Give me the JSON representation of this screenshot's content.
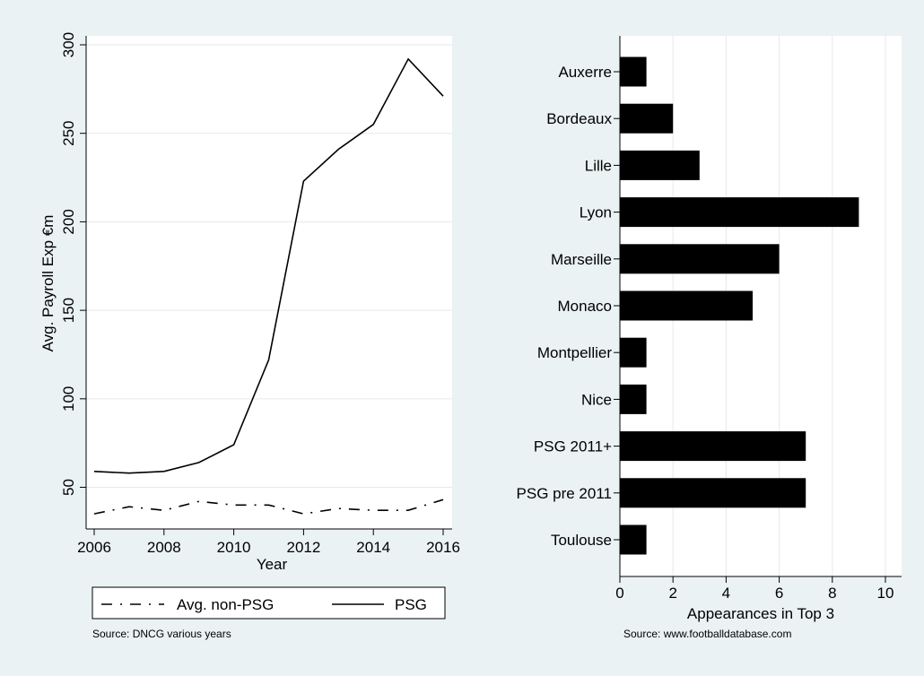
{
  "chart_data": [
    {
      "type": "line",
      "xlabel": "Year",
      "ylabel": "Avg. Payroll Exp €m",
      "xlim": [
        2006,
        2016
      ],
      "ylim": [
        30,
        300
      ],
      "x_ticks": [
        2006,
        2008,
        2010,
        2012,
        2014,
        2016
      ],
      "y_ticks": [
        50,
        100,
        150,
        200,
        250,
        300
      ],
      "x": [
        2006,
        2007,
        2008,
        2009,
        2010,
        2011,
        2012,
        2013,
        2014,
        2015,
        2016
      ],
      "series": [
        {
          "name": "Avg. non-PSG",
          "style": "dashed",
          "values": [
            35,
            39,
            37,
            42,
            40,
            40,
            35,
            38,
            37,
            37,
            43
          ]
        },
        {
          "name": "PSG",
          "style": "solid",
          "values": [
            59,
            58,
            59,
            64,
            74,
            122,
            223,
            241,
            255,
            292,
            271
          ]
        }
      ],
      "grid": true,
      "legend": {
        "position": "bottom",
        "entries": [
          "Avg. non-PSG",
          "PSG"
        ]
      },
      "note": "Source: DNCG various years"
    },
    {
      "type": "bar",
      "orientation": "horizontal",
      "categories": [
        "Auxerre",
        "Bordeaux",
        "Lille",
        "Lyon",
        "Marseille",
        "Monaco",
        "Montpellier",
        "Nice",
        "PSG 2011+",
        "PSG pre 2011",
        "Toulouse"
      ],
      "values": [
        1,
        2,
        3,
        9,
        6,
        5,
        1,
        1,
        7,
        7,
        1
      ],
      "xlabel": "Appearances in Top 3",
      "xlim": [
        0,
        10
      ],
      "x_ticks": [
        0,
        2,
        4,
        6,
        8,
        10
      ],
      "bar_color": "#000000",
      "grid": true,
      "note": "Source: www.footballdatabase.com"
    }
  ],
  "colors": {
    "background": "#eaf2f3",
    "plot_area": "#ffffff",
    "grid": "#e6eaea",
    "ink": "#000000"
  }
}
